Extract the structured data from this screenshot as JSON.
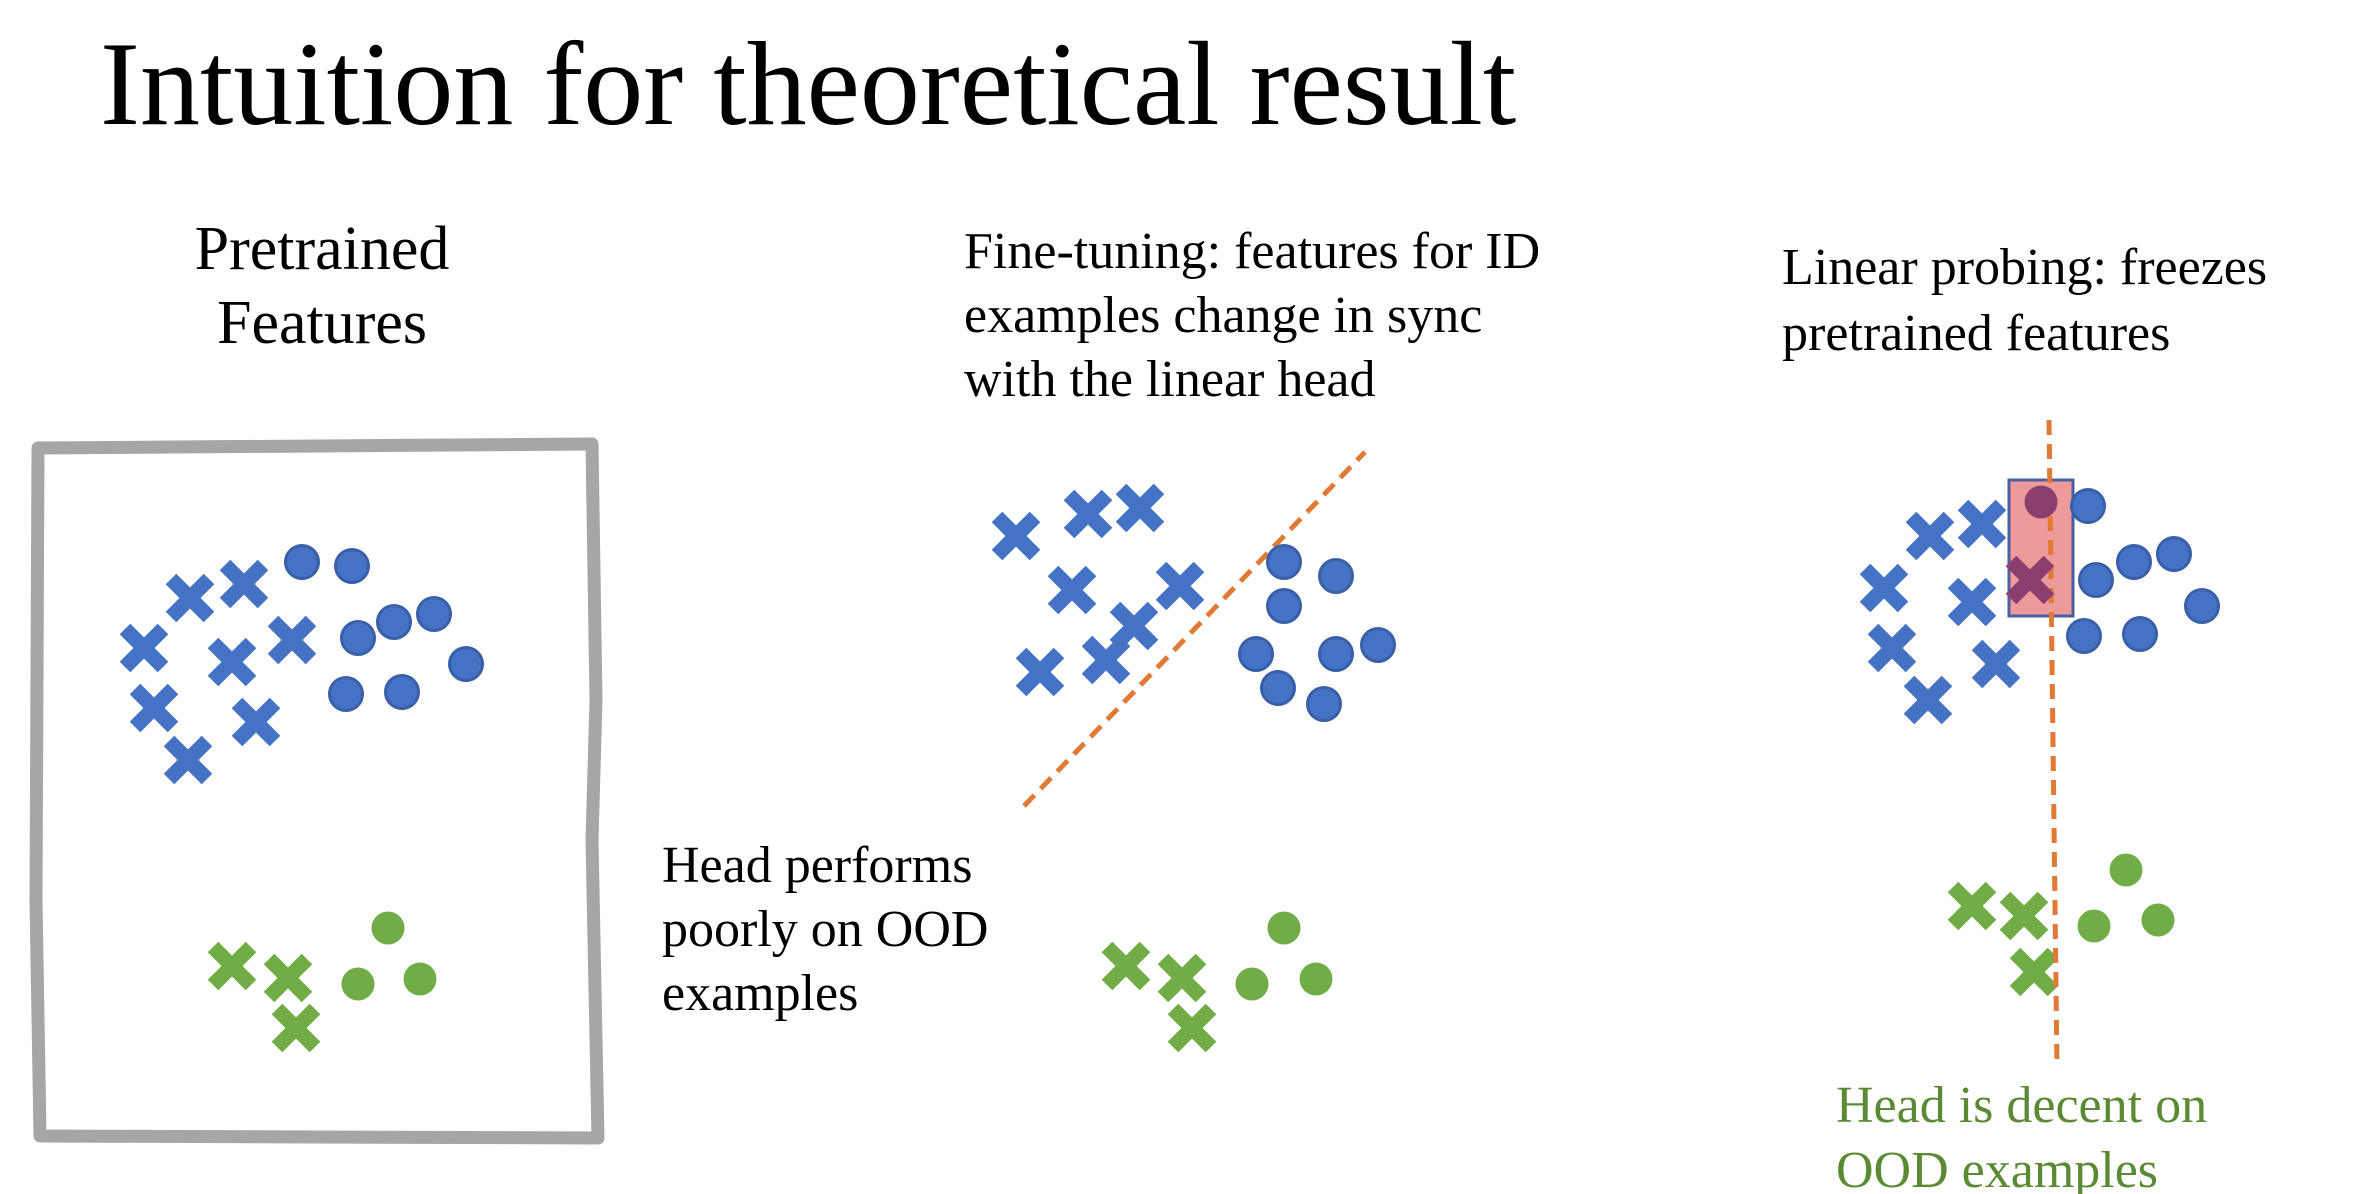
{
  "title": "Intuition for theoretical result",
  "colors": {
    "blue": "#4472c4",
    "green": "#70ad47",
    "orange": "#e07a35",
    "frame": "#a6a6a6",
    "highlight": "#ea8f8f",
    "highlight_border": "#4a5fa0",
    "caption_green": "#5a8a34"
  },
  "panels": [
    {
      "id": "pretrained",
      "caption": "Pretrained\nFeatures",
      "has_frame": true
    },
    {
      "id": "fine-tuning",
      "caption": "Fine-tuning: features for ID\nexamples change in sync\nwith the linear head",
      "note": "Head performs\npoorly on OOD\nexamples",
      "line": "orange-dashed-diagonal"
    },
    {
      "id": "linear-probing",
      "caption": "Linear probing: freezes\npretrained features",
      "note": "Head is decent on\nOOD examples",
      "line": "orange-dashed-vertical",
      "highlight": "red-rectangle-over-straddling-points"
    }
  ],
  "markers": {
    "cross": "x-mark",
    "circle": "filled-circle",
    "id_color": "blue",
    "ood_color": "green"
  }
}
